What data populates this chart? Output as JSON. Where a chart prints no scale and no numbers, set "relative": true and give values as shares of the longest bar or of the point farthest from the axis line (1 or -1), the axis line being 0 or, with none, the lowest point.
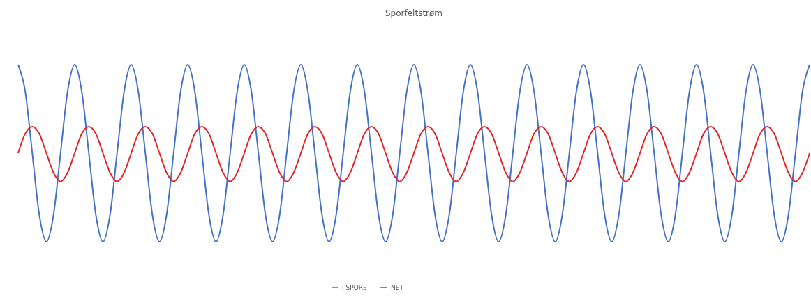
{
  "chart_data": {
    "type": "line",
    "title": "Sporfeltstrøm",
    "relative": true,
    "legend": "bottom",
    "grid": false,
    "categories": [
      null,
      null,
      null,
      null,
      null,
      null,
      null,
      null,
      null,
      null,
      null,
      null,
      null,
      null,
      null,
      null,
      null,
      null,
      null,
      null,
      null,
      null,
      null,
      null,
      null,
      null,
      null,
      null,
      null,
      null,
      null,
      null,
      null,
      null,
      null,
      null,
      null,
      null,
      null,
      null,
      null,
      null,
      null,
      null,
      null,
      null,
      null,
      null,
      null,
      null,
      null,
      null,
      null,
      null,
      null,
      null,
      null,
      null,
      null,
      null,
      null,
      null,
      null,
      null,
      null,
      null,
      null,
      null,
      null,
      null,
      null,
      null,
      null,
      null,
      null,
      null,
      null,
      null,
      null,
      null,
      null,
      null,
      null,
      null,
      null,
      null,
      null,
      null,
      null,
      null,
      null,
      null,
      null,
      null,
      null,
      null,
      null,
      null,
      null,
      null,
      null,
      null,
      null,
      null,
      null,
      null,
      null,
      null,
      null,
      null,
      null,
      null,
      null
    ],
    "series": [
      {
        "name": "I SPORET",
        "color": "#4472c4",
        "values": [
          1,
          0.85,
          0.5,
          0.15,
          0,
          0.15,
          0.5,
          0.85,
          1,
          0.85,
          0.5,
          0.15,
          0,
          0.15,
          0.5,
          0.85,
          1,
          0.85,
          0.5,
          0.15,
          0,
          0.15,
          0.5,
          0.85,
          1,
          0.85,
          0.5,
          0.15,
          0,
          0.15,
          0.5,
          0.85,
          1,
          0.85,
          0.5,
          0.15,
          0,
          0.15,
          0.5,
          0.85,
          1,
          0.85,
          0.5,
          0.15,
          0,
          0.15,
          0.5,
          0.85,
          1,
          0.85,
          0.5,
          0.15,
          0,
          0.15,
          0.5,
          0.85,
          1,
          0.85,
          0.5,
          0.15,
          0,
          0.15,
          0.5,
          0.85,
          1,
          0.85,
          0.5,
          0.15,
          0,
          0.15,
          0.5,
          0.85,
          1,
          0.85,
          0.5,
          0.15,
          0,
          0.15,
          0.5,
          0.85,
          1,
          0.85,
          0.5,
          0.15,
          0,
          0.15,
          0.5,
          0.85,
          1,
          0.85,
          0.5,
          0.15,
          0,
          0.15,
          0.5,
          0.85,
          1,
          0.85,
          0.5,
          0.15,
          0,
          0.15,
          0.5,
          0.85,
          1,
          0.85,
          0.5,
          0.15,
          0,
          0.15,
          0.5,
          0.85,
          1
        ]
      },
      {
        "name": "NET",
        "color": "#e0282a",
        "values": [
          0.5,
          0.61,
          0.65,
          0.61,
          0.5,
          0.39,
          0.34,
          0.39,
          0.5,
          0.61,
          0.65,
          0.61,
          0.5,
          0.39,
          0.34,
          0.39,
          0.5,
          0.61,
          0.65,
          0.61,
          0.5,
          0.39,
          0.34,
          0.39,
          0.5,
          0.61,
          0.65,
          0.61,
          0.5,
          0.39,
          0.34,
          0.39,
          0.5,
          0.61,
          0.65,
          0.61,
          0.5,
          0.39,
          0.34,
          0.39,
          0.5,
          0.61,
          0.65,
          0.61,
          0.5,
          0.39,
          0.34,
          0.39,
          0.5,
          0.61,
          0.65,
          0.61,
          0.5,
          0.39,
          0.34,
          0.39,
          0.5,
          0.61,
          0.65,
          0.61,
          0.5,
          0.39,
          0.34,
          0.39,
          0.5,
          0.61,
          0.65,
          0.61,
          0.5,
          0.39,
          0.34,
          0.39,
          0.5,
          0.61,
          0.65,
          0.61,
          0.5,
          0.39,
          0.34,
          0.39,
          0.5,
          0.61,
          0.65,
          0.61,
          0.5,
          0.39,
          0.34,
          0.39,
          0.5,
          0.61,
          0.65,
          0.61,
          0.5,
          0.39,
          0.34,
          0.39,
          0.5,
          0.61,
          0.65,
          0.61,
          0.5,
          0.39,
          0.34,
          0.39,
          0.5,
          0.61,
          0.65,
          0.61,
          0.5,
          0.39,
          0.34,
          0.39,
          0.5
        ]
      }
    ]
  }
}
